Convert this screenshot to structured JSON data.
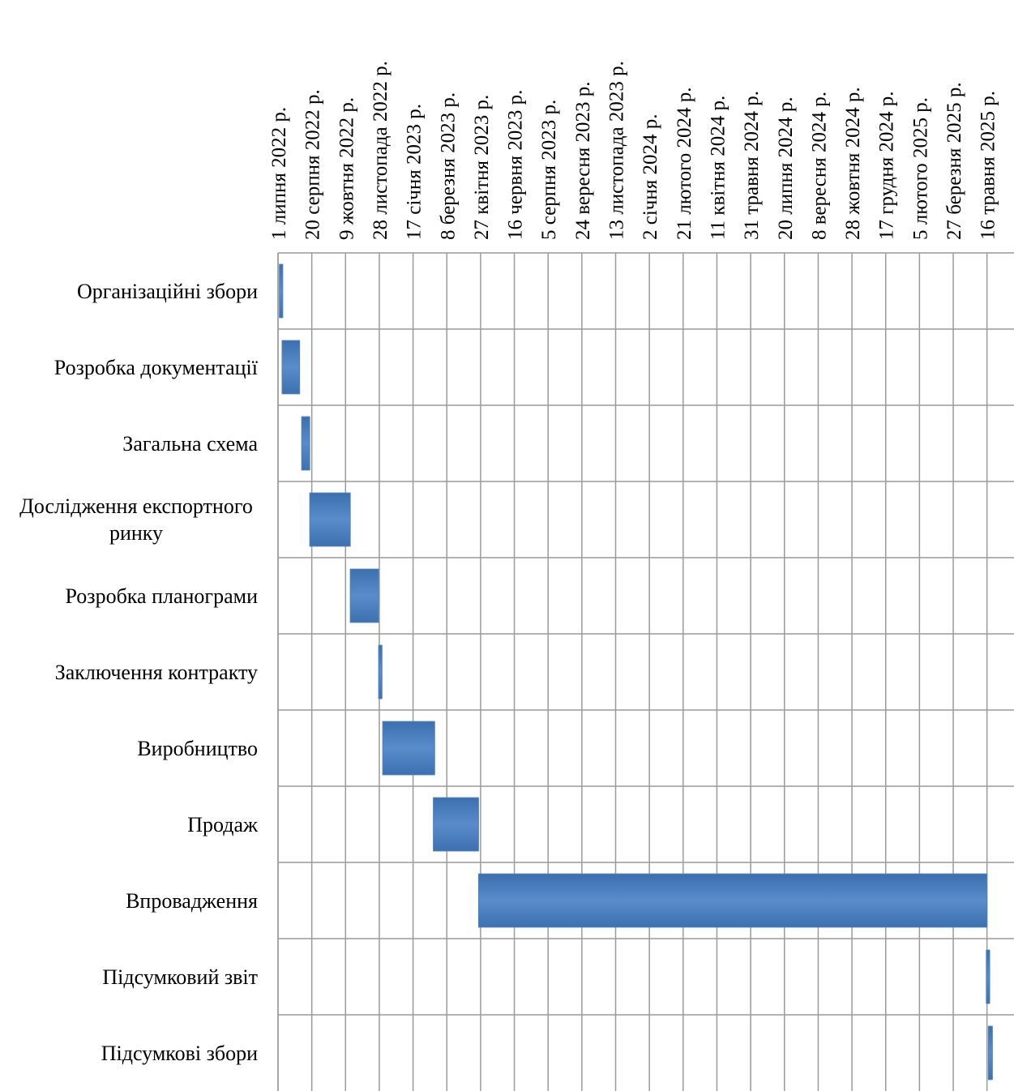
{
  "chart_data": {
    "type": "gantt",
    "categories": [
      "Організаційні збори",
      "Розробка документації",
      "Загальна схема",
      "Дослідження експортного ринку",
      "Розробка планограми",
      "Заключення контракту",
      "Виробництво",
      "Продаж",
      "Впровадження",
      "Підсумковий звіт",
      "Підсумкові збори"
    ],
    "start": [
      "2022-07-03",
      "2022-07-07",
      "2022-08-05",
      "2022-08-17",
      "2022-10-16",
      "2022-11-27",
      "2022-12-03",
      "2023-02-16",
      "2023-04-24",
      "2025-05-15",
      "2025-05-18"
    ],
    "end": [
      "2022-07-08",
      "2022-08-02",
      "2022-08-17",
      "2022-10-16",
      "2022-11-27",
      "2022-12-02",
      "2023-02-18",
      "2023-04-24",
      "2025-05-16",
      "2025-05-20",
      "2025-05-24"
    ],
    "color": "#4f81bd",
    "xlim": [
      "2022-07-01",
      "2025-06-25"
    ],
    "xticks": [
      {
        "value": "2022-07-01",
        "label": "1 липня 2022 р."
      },
      {
        "value": "2022-08-20",
        "label": "20 серпня 2022 р."
      },
      {
        "value": "2022-10-09",
        "label": "9 жовтня 2022 р."
      },
      {
        "value": "2022-11-28",
        "label": "28 листопада 2022 р."
      },
      {
        "value": "2023-01-17",
        "label": "17 січня 2023 р."
      },
      {
        "value": "2023-03-08",
        "label": "8 березня 2023 р."
      },
      {
        "value": "2023-04-27",
        "label": "27 квітня 2023 р."
      },
      {
        "value": "2023-06-16",
        "label": "16 червня 2023 р."
      },
      {
        "value": "2023-08-05",
        "label": "5 серпня 2023 р."
      },
      {
        "value": "2023-09-24",
        "label": "24 вересня 2023 р."
      },
      {
        "value": "2023-11-13",
        "label": "13 листопада 2023 р."
      },
      {
        "value": "2024-01-02",
        "label": "2 січня 2024 р."
      },
      {
        "value": "2024-02-21",
        "label": "21 лютого 2024 р."
      },
      {
        "value": "2024-04-11",
        "label": "11 квітня 2024 р."
      },
      {
        "value": "2024-05-31",
        "label": "31 травня 2024 р."
      },
      {
        "value": "2024-07-20",
        "label": "20 липня 2024 р."
      },
      {
        "value": "2024-09-08",
        "label": "8 вересня 2024 р."
      },
      {
        "value": "2024-10-28",
        "label": "28 жовтня 2024 р."
      },
      {
        "value": "2024-12-17",
        "label": "17 грудня 2024 р."
      },
      {
        "value": "2025-02-05",
        "label": "5 лютого 2025 р."
      },
      {
        "value": "2025-03-27",
        "label": "27 березня 2025 р."
      },
      {
        "value": "2025-05-16",
        "label": "16 травня 2025 р."
      }
    ],
    "grid": true
  }
}
